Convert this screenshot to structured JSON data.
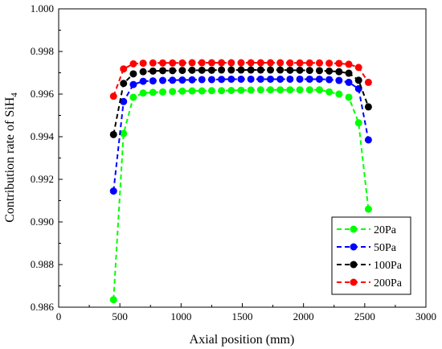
{
  "chart_data": {
    "type": "line",
    "title": "",
    "xlabel": "Axial position (mm)",
    "ylabel_main": "Contribution rate of SiH",
    "ylabel_sub": "4",
    "xlim": [
      0,
      3000
    ],
    "ylim": [
      0.986,
      1.0
    ],
    "xticks": [
      "0",
      "500",
      "1000",
      "1500",
      "2000",
      "2500",
      "3000"
    ],
    "yticks": [
      "0.986",
      "0.988",
      "0.990",
      "0.992",
      "0.994",
      "0.996",
      "0.998",
      "1.000"
    ],
    "grid": false,
    "legend_position": "bottom-right",
    "x": [
      448,
      530,
      610,
      690,
      770,
      850,
      930,
      1010,
      1090,
      1170,
      1250,
      1330,
      1410,
      1490,
      1570,
      1650,
      1730,
      1810,
      1890,
      1970,
      2050,
      2130,
      2210,
      2290,
      2370,
      2450,
      2530
    ],
    "series": [
      {
        "name": "20Pa",
        "color": "#00ff00",
        "values": [
          0.98635,
          0.99415,
          0.99585,
          0.99605,
          0.99608,
          0.9961,
          0.99612,
          0.99614,
          0.99615,
          0.99615,
          0.99616,
          0.99616,
          0.99617,
          0.99618,
          0.99619,
          0.9962,
          0.9962,
          0.9962,
          0.9962,
          0.9962,
          0.9962,
          0.9962,
          0.9961,
          0.996,
          0.99585,
          0.99465,
          0.9906
        ]
      },
      {
        "name": "50Pa",
        "color": "#0000ff",
        "values": [
          0.99145,
          0.99565,
          0.99645,
          0.9966,
          0.99662,
          0.99664,
          0.99665,
          0.99666,
          0.99667,
          0.99668,
          0.99668,
          0.99669,
          0.9967,
          0.9967,
          0.9967,
          0.9967,
          0.9967,
          0.9967,
          0.9967,
          0.9967,
          0.9967,
          0.9967,
          0.99668,
          0.99664,
          0.99655,
          0.99625,
          0.99385
        ]
      },
      {
        "name": "100Pa",
        "color": "#000000",
        "values": [
          0.9941,
          0.9965,
          0.99695,
          0.99705,
          0.99708,
          0.9971,
          0.9971,
          0.99711,
          0.99712,
          0.99712,
          0.99712,
          0.99713,
          0.99713,
          0.99713,
          0.99713,
          0.99713,
          0.99713,
          0.99713,
          0.99712,
          0.99712,
          0.99711,
          0.9971,
          0.99708,
          0.99705,
          0.99698,
          0.99665,
          0.9954
        ]
      },
      {
        "name": "200Pa",
        "color": "#ff0000",
        "values": [
          0.9959,
          0.99718,
          0.99742,
          0.99745,
          0.99746,
          0.99746,
          0.99746,
          0.99746,
          0.99747,
          0.99747,
          0.99747,
          0.99747,
          0.99747,
          0.99747,
          0.99747,
          0.99747,
          0.99747,
          0.99747,
          0.99746,
          0.99746,
          0.99746,
          0.99746,
          0.99745,
          0.99744,
          0.9974,
          0.99725,
          0.99655
        ]
      }
    ]
  }
}
